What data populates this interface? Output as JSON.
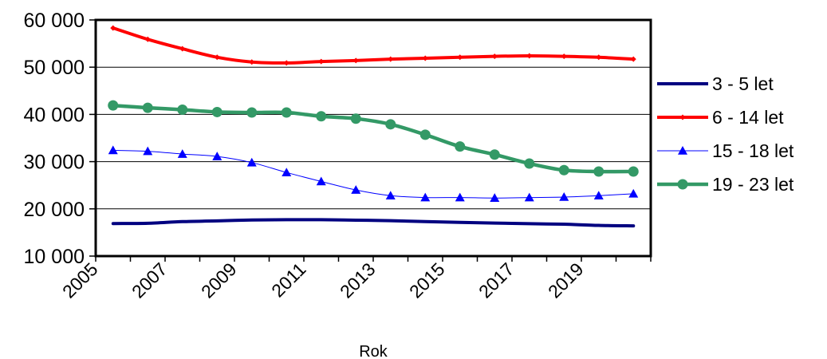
{
  "chart_data": {
    "type": "line",
    "title": "",
    "xlabel": "Rok",
    "ylabel": "",
    "x": [
      2005,
      2006,
      2007,
      2008,
      2009,
      2010,
      2011,
      2012,
      2013,
      2014,
      2015,
      2016,
      2017,
      2018,
      2019,
      2020
    ],
    "x_tick_labels": [
      "2005",
      "2007",
      "2009",
      "2011",
      "2013",
      "2015",
      "2017",
      "2019"
    ],
    "ylim": [
      10000,
      60000
    ],
    "y_ticks": [
      10000,
      20000,
      30000,
      40000,
      50000,
      60000
    ],
    "y_tick_labels": [
      "10 000",
      "20 000",
      "30 000",
      "40 000",
      "50 000",
      "60 000"
    ],
    "grid": true,
    "legend_position": "right",
    "series": [
      {
        "name": "3 - 5 let",
        "color": "#000080",
        "marker": "none",
        "values": [
          16900,
          16950,
          17300,
          17450,
          17650,
          17700,
          17700,
          17600,
          17500,
          17300,
          17150,
          17000,
          16850,
          16750,
          16500,
          16400
        ]
      },
      {
        "name": "6 - 14 let",
        "color": "#ff0000",
        "marker": "diamond-small",
        "values": [
          58300,
          55900,
          53900,
          52100,
          51100,
          50900,
          51200,
          51400,
          51700,
          51900,
          52100,
          52300,
          52400,
          52300,
          52100,
          51700
        ]
      },
      {
        "name": "15 - 18 let",
        "color": "#0000ff",
        "marker": "triangle",
        "values": [
          32400,
          32200,
          31600,
          31100,
          29800,
          27700,
          25800,
          24000,
          22800,
          22400,
          22400,
          22300,
          22400,
          22500,
          22800,
          23200
        ]
      },
      {
        "name": "19 - 23 let",
        "color": "#339966",
        "marker": "circle",
        "values": [
          41900,
          41400,
          41000,
          40500,
          40400,
          40400,
          39600,
          39100,
          37900,
          35700,
          33200,
          31500,
          29600,
          28200,
          27900,
          27900
        ]
      }
    ]
  }
}
